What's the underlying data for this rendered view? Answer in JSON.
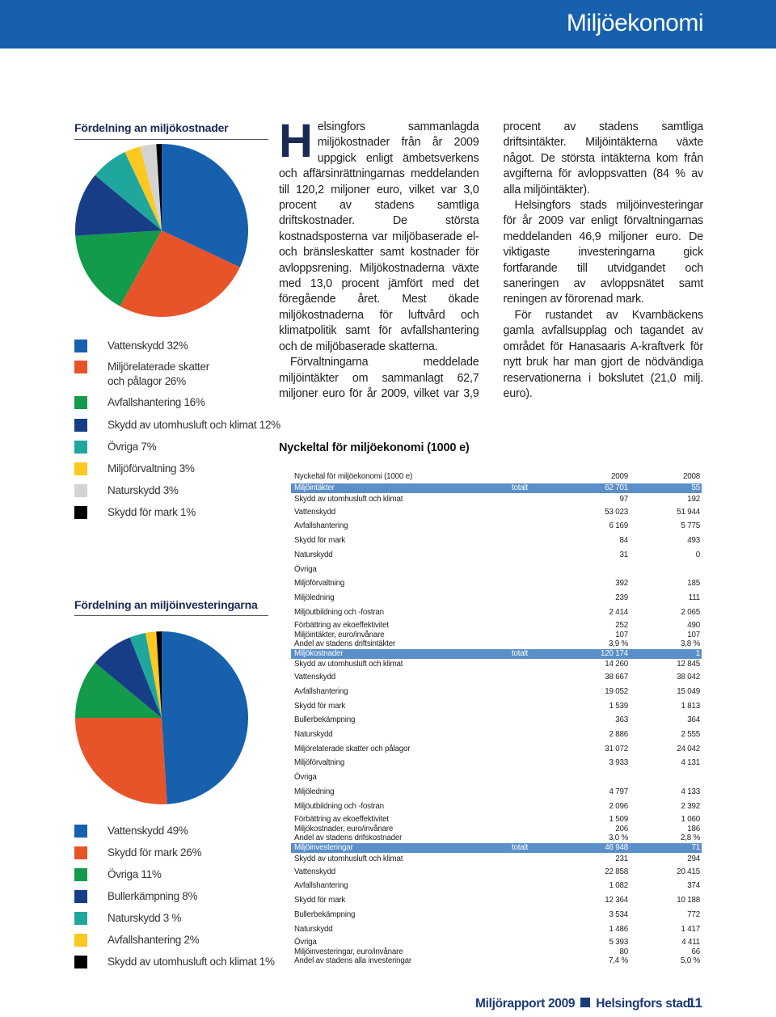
{
  "header": {
    "title": "Miljöekonomi"
  },
  "pie_costs": {
    "type": "pie",
    "title": "Fördelning an miljökostnader",
    "labels": [
      "Vattenskydd 32%",
      "Miljörelaterade skatter\noch pålagor 26%",
      "Avfallshantering 16%",
      "Skydd av utomhusluft och klimat 12%",
      "Övriga 7%",
      "Miljöförvaltning 3%",
      "Naturskydd 3%",
      "Skydd för mark 1%"
    ],
    "values": [
      32,
      26,
      16,
      12,
      7,
      3,
      3,
      1
    ],
    "colors": [
      "#1660ad",
      "#e8542a",
      "#139a4a",
      "#173d86",
      "#1fa79e",
      "#fdc821",
      "#d3d3d3",
      "#000000"
    ]
  },
  "pie_investments": {
    "type": "pie",
    "title": "Fördelning an miljöinvesteringarna",
    "labels": [
      "Vattenskydd 49%",
      "Skydd för mark 26%",
      "Övriga 11%",
      "Bullerkämpning 8%",
      "Naturskydd 3 %",
      "Avfallshantering 2%",
      "Skydd av utomhusluft och klimat 1%"
    ],
    "values": [
      49,
      26,
      11,
      8,
      3,
      2,
      1
    ],
    "colors": [
      "#1660ad",
      "#e8542a",
      "#139a4a",
      "#173d86",
      "#1fa79e",
      "#fdc821",
      "#000000"
    ]
  },
  "article": {
    "dropcap": "H",
    "paragraphs": [
      "elsingfors sammanlagda miljökostnader från år 2009 uppgick enligt ämbetsverkens och affärsinrättningarnas meddelanden till 120,2 miljoner euro, vilket var 3,0 procent av stadens samtliga driftskostnader. De största kostnadsposterna var miljöbaserade el- och bränsleskatter samt kostnader för avloppsrening. Miljökostnaderna växte med 13,0 procent jämfört med det föregående året. Mest ökade miljökostnaderna för luftvård och klimatpolitik samt för avfallshantering och de miljöbaserade skatterna.",
      "Förvaltningarna meddelade miljöintäkter om sammanlagt 62,7 miljoner euro för år 2009, vilket var 3,9 procent av stadens samtliga driftsintäkter. Miljöintäkterna växte något. De största intäkterna kom från avgifterna för avloppsvatten (84 % av alla miljöintäkter).",
      "Helsingfors stads miljöinvesteringar för år 2009 var enligt förvaltningarnas meddelanden 46,9 miljoner euro. De viktigaste investeringarna gick fortfarande till utvidgandet och saneringen av avloppsnätet samt reningen av förorenad mark.",
      "För rustandet av Kvarnbäckens gamla avfallsupplag och tagandet av området för Hanasaaris A-kraftverk för nytt bruk har man gjort de nödvändiga reservationerna i bokslutet (21,0 milj. euro)."
    ]
  },
  "table": {
    "title": "Nyckeltal för miljöekonomi (1000 e)",
    "rows": [
      {
        "label": "Nyckeltal för miljöekonomi (1000 e)",
        "v2009": "2009",
        "v2008": "2008"
      },
      {
        "label": "Miljöintäkter",
        "total": "totalt",
        "v2009": "62 701",
        "v2008": "55",
        "highlight": true
      },
      {
        "label": "Skydd av utomhusluft och klimat",
        "v2009": "97",
        "v2008": "192"
      },
      {
        "label": "Vattenskydd",
        "v2009": "53 023",
        "v2008": "51 944"
      },
      {
        "label": "Avfallshantering",
        "v2009": "6 169",
        "v2008": "5 775"
      },
      {
        "label": "Skydd för mark",
        "v2009": "84",
        "v2008": "493"
      },
      {
        "label": "Naturskydd",
        "v2009": "31",
        "v2008": "0"
      },
      {
        "label": "Övriga"
      },
      {
        "label": "Miljöförvaltning",
        "v2009": "392",
        "v2008": "185"
      },
      {
        "label": "Miljöledning",
        "v2009": "239",
        "v2008": "111"
      },
      {
        "label": "Miljöutbildning och -fostran",
        "v2009": "2 414",
        "v2008": "2 065"
      },
      {
        "label": "Förbättring av ekoeffektivitet",
        "v2009": "252",
        "v2008": "490"
      },
      {
        "label": "Miljöintäkter, euro/invånare",
        "v2009": "107",
        "v2008": "107"
      },
      {
        "label": "Andel av stadens driftsintäkter",
        "v2009": "3,9 %",
        "v2008": "3,8 %"
      },
      {
        "label": "Miljökostnader",
        "total": "totalt",
        "v2009": "120 174",
        "v2008": "1",
        "highlight": true
      },
      {
        "label": "Skydd av utomhusluft och klimat",
        "v2009": "14 260",
        "v2008": "12 845"
      },
      {
        "label": "Vattenskydd",
        "v2009": "38 667",
        "v2008": "38 042"
      },
      {
        "label": "Avfallshantering",
        "v2009": "19 052",
        "v2008": "15 049"
      },
      {
        "label": "Skydd för mark",
        "v2009": "1 539",
        "v2008": "1 813"
      },
      {
        "label": "Bullerbekämpning",
        "v2009": "363",
        "v2008": "364"
      },
      {
        "label": "Naturskydd",
        "v2009": "2 886",
        "v2008": "2 555"
      },
      {
        "label": "Miljörelaterade skatter och pålagor",
        "v2009": "31 072",
        "v2008": "24 042"
      },
      {
        "label": "Miljöförvaltning",
        "v2009": "3 933",
        "v2008": "4 131"
      },
      {
        "label": "Övriga"
      },
      {
        "label": "Miljöledning",
        "v2009": "4 797",
        "v2008": "4 133"
      },
      {
        "label": "Miljöutbildning och -fostran",
        "v2009": "2 096",
        "v2008": "2 392"
      },
      {
        "label": "Förbättring av ekoeffektivitet",
        "v2009": "1 509",
        "v2008": "1 060"
      },
      {
        "label": "Miljökostnader, euro/invånare",
        "v2009": "206",
        "v2008": "186"
      },
      {
        "label": "Andel av stadens drifskostnader",
        "v2009": "3,0 %",
        "v2008": "2,8 %"
      },
      {
        "label": "Miljöinvesteringar",
        "total": "totalt",
        "v2009": "46 948",
        "v2008": "71",
        "highlight": true
      },
      {
        "label": "Skydd av utomhusluft och klimat",
        "v2009": "231",
        "v2008": "294"
      },
      {
        "label": "Vattenskydd",
        "v2009": "22 858",
        "v2008": "20 415"
      },
      {
        "label": "Avfallshantering",
        "v2009": "1 082",
        "v2008": "374"
      },
      {
        "label": "Skydd för mark",
        "v2009": "12 364",
        "v2008": "10 188"
      },
      {
        "label": "Bullerbekämpning",
        "v2009": "3 534",
        "v2008": "772"
      },
      {
        "label": "Naturskydd",
        "v2009": "1 486",
        "v2008": "1 417"
      },
      {
        "label": "Övriga",
        "v2009": "5 393",
        "v2008": "4 411"
      },
      {
        "label": "Miljöinvesteringar, euro/invånare",
        "v2009": "80",
        "v2008": "66"
      },
      {
        "label": "Andel av stadens alla investeringar",
        "v2009": "7,4 %",
        "v2008": "5,0 %"
      }
    ]
  },
  "footer": {
    "report": "Miljörapport 2009",
    "city": "Helsingfors stad",
    "page": "11"
  }
}
